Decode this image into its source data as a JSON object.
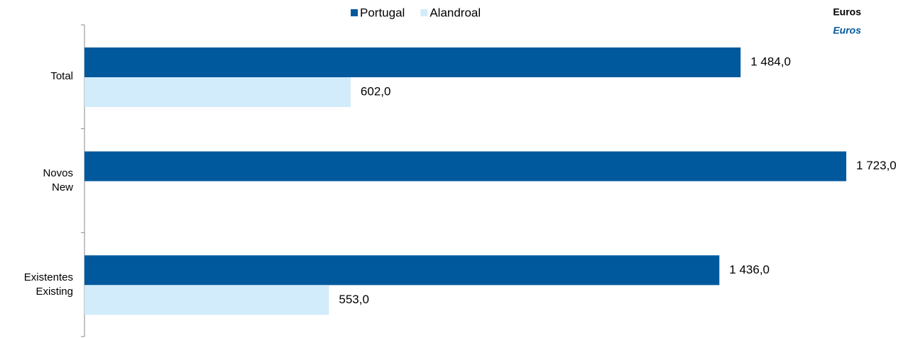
{
  "chart_data": {
    "type": "bar",
    "orientation": "horizontal",
    "unit_labels": [
      "Euros",
      "Euros"
    ],
    "categories": [
      "Total",
      "Novos\nNew",
      "Existentes\nExisting"
    ],
    "series": [
      {
        "name": "Portugal",
        "color": "#00599d",
        "values": [
          1484,
          1723,
          1436
        ],
        "value_labels": [
          "1 484,0",
          "1 723,0",
          "1 436,0"
        ]
      },
      {
        "name": "Alandroal",
        "color": "#d3ecfb",
        "values": [
          602,
          null,
          553
        ],
        "value_labels": [
          "602,0",
          null,
          "553,0"
        ]
      }
    ],
    "xlim": [
      0,
      1800
    ]
  }
}
